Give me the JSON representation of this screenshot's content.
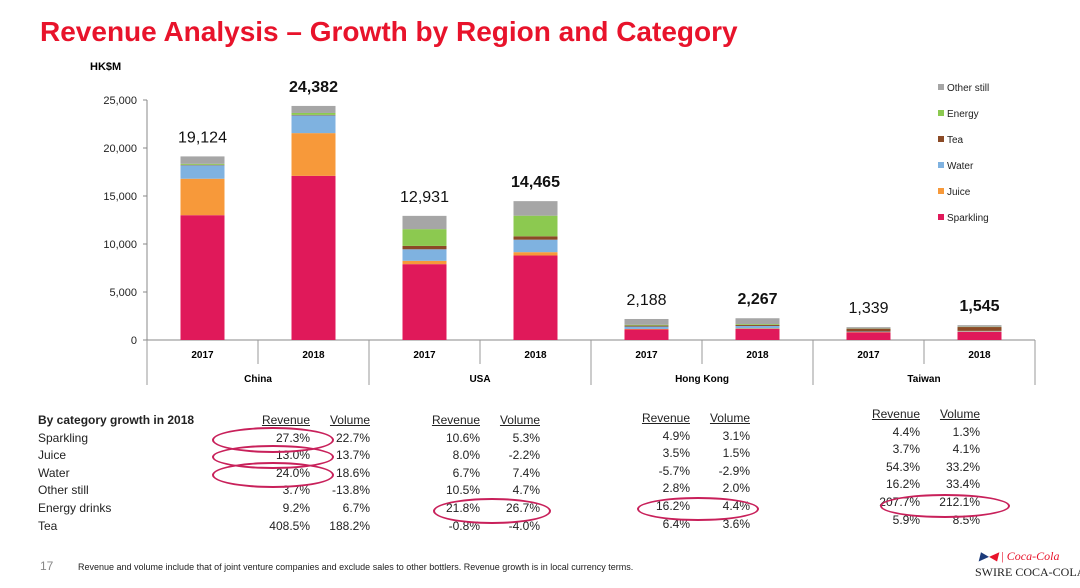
{
  "title": "Revenue Analysis – Growth by Region and Category",
  "chart_data": {
    "type": "bar",
    "stacked": true,
    "ylabel": "HK$M",
    "ylim": [
      0,
      25000
    ],
    "yticks": [
      "0",
      "5,000",
      "10,000",
      "15,000",
      "20,000",
      "25,000"
    ],
    "categories": [
      "2017",
      "2018",
      "2017",
      "2018",
      "2017",
      "2018",
      "2017",
      "2018"
    ],
    "groups": [
      "China",
      "USA",
      "Hong Kong",
      "Taiwan"
    ],
    "totals": [
      "19,124",
      "24,382",
      "12,931",
      "14,465",
      "2,188",
      "2,267",
      "1,339",
      "1,545"
    ],
    "series": [
      {
        "name": "Sparkling",
        "color": "#e0195a",
        "values": [
          13000,
          17100,
          7900,
          8800,
          1100,
          1150,
          800,
          850
        ]
      },
      {
        "name": "Juice",
        "color": "#f7993a",
        "values": [
          3800,
          4450,
          350,
          350,
          50,
          50,
          30,
          40
        ]
      },
      {
        "name": "Water",
        "color": "#7fb2e0",
        "values": [
          1400,
          1850,
          1200,
          1300,
          250,
          260,
          50,
          60
        ]
      },
      {
        "name": "Tea",
        "color": "#8b4a26",
        "values": [
          50,
          50,
          350,
          350,
          100,
          100,
          300,
          400
        ]
      },
      {
        "name": "Energy",
        "color": "#8cc950",
        "values": [
          100,
          200,
          1750,
          2150,
          80,
          90,
          20,
          30
        ]
      },
      {
        "name": "Other still",
        "color": "#a6a6a6",
        "values": [
          774,
          732,
          1381,
          1515,
          608,
          617,
          139,
          165
        ]
      }
    ],
    "legend": "right"
  },
  "growth": {
    "heading": "By category growth in 2018",
    "rev": "Revenue",
    "vol": "Volume",
    "categories": [
      "Sparkling",
      "Juice",
      "Water",
      "Other still",
      "Energy drinks",
      "Tea"
    ],
    "regions": [
      {
        "rows": [
          [
            "27.3%",
            "22.7%"
          ],
          [
            "13.0%",
            "13.7%"
          ],
          [
            "24.0%",
            "18.6%"
          ],
          [
            "3.7%",
            "-13.8%"
          ],
          [
            "9.2%",
            "6.7%"
          ],
          [
            "408.5%",
            "188.2%"
          ]
        ]
      },
      {
        "rows": [
          [
            "10.6%",
            "5.3%"
          ],
          [
            "8.0%",
            "-2.2%"
          ],
          [
            "6.7%",
            "7.4%"
          ],
          [
            "10.5%",
            "4.7%"
          ],
          [
            "21.8%",
            "26.7%"
          ],
          [
            "-0.8%",
            "-4.0%"
          ]
        ]
      },
      {
        "rows": [
          [
            "4.9%",
            "3.1%"
          ],
          [
            "3.5%",
            "1.5%"
          ],
          [
            "-5.7%",
            "-2.9%"
          ],
          [
            "2.8%",
            "2.0%"
          ],
          [
            "16.2%",
            "4.4%"
          ],
          [
            "6.4%",
            "3.6%"
          ]
        ]
      },
      {
        "rows": [
          [
            "4.4%",
            "1.3%"
          ],
          [
            "3.7%",
            "4.1%"
          ],
          [
            "54.3%",
            "33.2%"
          ],
          [
            "16.2%",
            "33.4%"
          ],
          [
            "207.7%",
            "212.1%"
          ],
          [
            "5.9%",
            "8.5%"
          ]
        ]
      }
    ]
  },
  "footer": {
    "page": "17",
    "note": "Revenue and volume include that of joint venture companies and exclude sales to other bottlers.  Revenue growth is in local currency terms.",
    "logo_top": "Coca-Cola",
    "logo": "SWIRE COCA-COLA"
  }
}
